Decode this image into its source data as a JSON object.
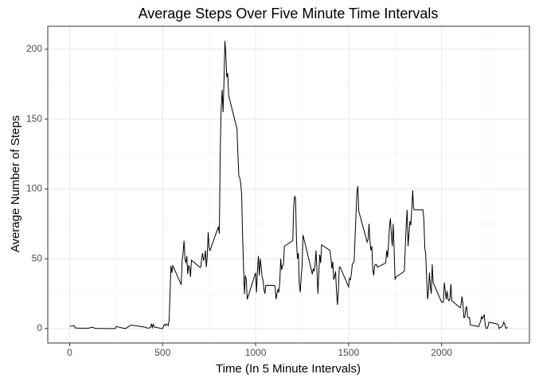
{
  "chart_data": {
    "type": "line",
    "title": "Average Steps Over Five Minute Time Intervals",
    "x_label": "Time (In 5 Minute Intervals)",
    "y_label": "Average Number of Steps",
    "color": "#000000",
    "grid": true,
    "xlim": [
      -117.75,
      2472.75
    ],
    "xticks": [
      0,
      500,
      1000,
      1500,
      2000
    ],
    "ylim": [
      -10.3,
      216.5
    ],
    "yticks": [
      0,
      50,
      100,
      150,
      200
    ],
    "x": [
      0,
      25,
      30,
      50,
      100,
      125,
      135,
      200,
      245,
      250,
      300,
      330,
      400,
      420,
      435,
      440,
      445,
      450,
      455,
      500,
      505,
      510,
      515,
      520,
      530,
      535,
      545,
      550,
      555,
      600,
      605,
      610,
      615,
      620,
      625,
      630,
      635,
      640,
      645,
      650,
      655,
      700,
      705,
      710,
      715,
      720,
      725,
      730,
      735,
      740,
      745,
      750,
      755,
      800,
      805,
      810,
      815,
      820,
      825,
      830,
      835,
      840,
      845,
      850,
      855,
      900,
      905,
      910,
      915,
      920,
      925,
      930,
      935,
      940,
      945,
      950,
      955,
      1000,
      1005,
      1010,
      1015,
      1020,
      1025,
      1030,
      1035,
      1040,
      1045,
      1050,
      1055,
      1100,
      1105,
      1110,
      1115,
      1120,
      1125,
      1130,
      1135,
      1140,
      1145,
      1150,
      1155,
      1200,
      1205,
      1210,
      1215,
      1220,
      1225,
      1230,
      1235,
      1240,
      1245,
      1250,
      1255,
      1300,
      1305,
      1310,
      1315,
      1320,
      1325,
      1330,
      1335,
      1340,
      1345,
      1350,
      1355,
      1400,
      1405,
      1410,
      1415,
      1420,
      1425,
      1430,
      1435,
      1440,
      1445,
      1450,
      1455,
      1500,
      1505,
      1510,
      1515,
      1520,
      1525,
      1530,
      1535,
      1540,
      1545,
      1550,
      1555,
      1600,
      1605,
      1610,
      1615,
      1620,
      1625,
      1630,
      1635,
      1640,
      1645,
      1650,
      1655,
      1700,
      1705,
      1710,
      1715,
      1720,
      1725,
      1730,
      1735,
      1740,
      1745,
      1750,
      1755,
      1800,
      1805,
      1810,
      1815,
      1820,
      1825,
      1830,
      1835,
      1840,
      1845,
      1850,
      1855,
      1900,
      1905,
      1910,
      1915,
      1920,
      1925,
      1930,
      1935,
      1940,
      1945,
      1950,
      1955,
      2000,
      2005,
      2010,
      2015,
      2020,
      2025,
      2030,
      2035,
      2040,
      2045,
      2050,
      2055,
      2100,
      2105,
      2110,
      2115,
      2120,
      2125,
      2130,
      2135,
      2140,
      2145,
      2150,
      2155,
      2200,
      2205,
      2210,
      2215,
      2220,
      2225,
      2230,
      2235,
      2240,
      2245,
      2250,
      2255,
      2300,
      2305,
      2310,
      2315,
      2320,
      2325,
      2330,
      2335,
      2340,
      2345,
      2350,
      2355
    ],
    "values": [
      1.7,
      2.1,
      0.5,
      0.3,
      0.3,
      1.1,
      0.2,
      0,
      0,
      1.5,
      0,
      2.6,
      1.2,
      0.3,
      0.7,
      3.5,
      0.8,
      3.1,
      1.1,
      0,
      2,
      3,
      2.2,
      3.3,
      2.1,
      6.1,
      45,
      40,
      45,
      31.5,
      49,
      54,
      63,
      50,
      47,
      52,
      39,
      45,
      44,
      37,
      49,
      44,
      44,
      50,
      54,
      49,
      50,
      56,
      44,
      52,
      69,
      58,
      56,
      73,
      68,
      129,
      158,
      171,
      155,
      177,
      206,
      196,
      180,
      183,
      167,
      143,
      124,
      109,
      108,
      104,
      96,
      66,
      45,
      24.8,
      38,
      35,
      21,
      40,
      26,
      42,
      52,
      38,
      50,
      44,
      37,
      35,
      28,
      25,
      31,
      31,
      30,
      21,
      25,
      28,
      26,
      33,
      50,
      42,
      45,
      46,
      59,
      63,
      88,
      95,
      93,
      63,
      50,
      54,
      32,
      26,
      37,
      45,
      67,
      42,
      39,
      43,
      41,
      46,
      56,
      42,
      25,
      39,
      53,
      47,
      60,
      56,
      51,
      43,
      48,
      35,
      37,
      41,
      27,
      17,
      26,
      44,
      44,
      30,
      36,
      35,
      39,
      46,
      47,
      48,
      65,
      82,
      98,
      102,
      84,
      62,
      64,
      75,
      63,
      56,
      59,
      43,
      38,
      45,
      46,
      46,
      44,
      47,
      56,
      51,
      61,
      73,
      79,
      68,
      59,
      75,
      57,
      35,
      37,
      41,
      58,
      74,
      85,
      59,
      68,
      77,
      74,
      85,
      99,
      86,
      85,
      85,
      78,
      58,
      53,
      36,
      21,
      27,
      40,
      30,
      25,
      46,
      33,
      19,
      19,
      19,
      33,
      27,
      21,
      27,
      21,
      20,
      21,
      32,
      20,
      15,
      17,
      23,
      18,
      8,
      8,
      14,
      16,
      8.7,
      7.8,
      8,
      2.6,
      1.5,
      3.7,
      4.8,
      8.5,
      7.1,
      8.7,
      9.8,
      2.2,
      0.3,
      0.1,
      1.6,
      4.6,
      3.3,
      2.8,
      0,
      0.8,
      1,
      1.6,
      2.6,
      4.7,
      3.3,
      0.6,
      0.2,
      1.1
    ]
  }
}
